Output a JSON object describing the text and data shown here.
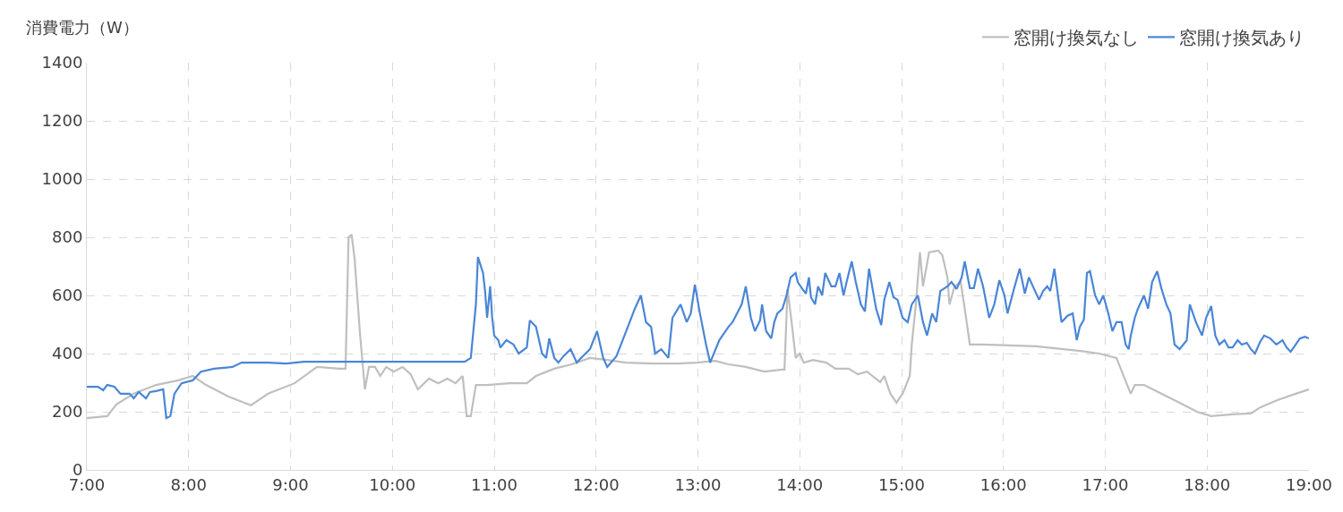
{
  "chart_data": {
    "type": "line",
    "ylabel": "消費電力（W）",
    "xlim": [
      7,
      19
    ],
    "xticks": [
      {
        "value": 7,
        "label": "7:00"
      },
      {
        "value": 8,
        "label": "8:00"
      },
      {
        "value": 9,
        "label": "9:00"
      },
      {
        "value": 10,
        "label": "10:00"
      },
      {
        "value": 11,
        "label": "11:00"
      },
      {
        "value": 12,
        "label": "12:00"
      },
      {
        "value": 13,
        "label": "13:00"
      },
      {
        "value": 14,
        "label": "14:00"
      },
      {
        "value": 15,
        "label": "15:00"
      },
      {
        "value": 16,
        "label": "16:00"
      },
      {
        "value": 17,
        "label": "17:00"
      },
      {
        "value": 18,
        "label": "18:00"
      },
      {
        "value": 19,
        "label": "19:00"
      }
    ],
    "ylim": [
      0,
      1400
    ],
    "yticks": [
      0,
      200,
      400,
      600,
      800,
      1000,
      1200,
      1400
    ],
    "grid": true,
    "legend": "top right",
    "marker": "none",
    "line_style": "solid",
    "series": [
      {
        "name": "窓開け換気なし",
        "color": "#bfbfbf",
        "x": [
          7.0,
          7.2,
          7.29,
          7.46,
          7.68,
          7.9,
          8.04,
          8.17,
          8.39,
          8.61,
          8.78,
          9.04,
          9.26,
          9.48,
          9.54,
          9.57,
          9.6,
          9.63,
          9.68,
          9.73,
          9.77,
          9.83,
          9.88,
          9.94,
          10.01,
          10.1,
          10.18,
          10.25,
          10.36,
          10.45,
          10.54,
          10.62,
          10.69,
          10.73,
          10.77,
          10.82,
          10.93,
          11.15,
          11.32,
          11.41,
          11.59,
          11.76,
          11.94,
          12.11,
          12.29,
          12.55,
          12.82,
          12.99,
          13.17,
          13.3,
          13.47,
          13.65,
          13.83,
          13.85,
          13.88,
          13.92,
          13.96,
          14.0,
          14.04,
          14.13,
          14.26,
          14.35,
          14.48,
          14.57,
          14.66,
          14.79,
          14.83,
          14.89,
          14.95,
          15.01,
          15.08,
          15.1,
          15.14,
          15.18,
          15.21,
          15.27,
          15.36,
          15.4,
          15.45,
          15.47,
          15.52,
          15.58,
          15.62,
          15.67,
          15.8,
          16.06,
          16.32,
          16.59,
          16.76,
          16.94,
          17.11,
          17.18,
          17.25,
          17.29,
          17.38,
          17.55,
          17.73,
          17.9,
          18.04,
          18.25,
          18.43,
          18.52,
          18.69,
          18.87,
          19.0
        ],
        "values": [
          178,
          185,
          225,
          262,
          292,
          308,
          323,
          292,
          252,
          222,
          262,
          298,
          354,
          348,
          348,
          800,
          809,
          723,
          477,
          277,
          354,
          354,
          323,
          354,
          338,
          354,
          329,
          277,
          314,
          298,
          314,
          298,
          323,
          185,
          185,
          292,
          292,
          298,
          298,
          323,
          348,
          363,
          385,
          378,
          369,
          366,
          366,
          369,
          375,
          363,
          354,
          338,
          345,
          345,
          622,
          508,
          385,
          400,
          369,
          378,
          369,
          348,
          348,
          329,
          338,
          302,
          323,
          262,
          231,
          262,
          323,
          431,
          569,
          748,
          631,
          748,
          754,
          738,
          662,
          569,
          631,
          646,
          554,
          431,
          431,
          428,
          425,
          415,
          409,
          400,
          385,
          323,
          262,
          292,
          292,
          262,
          231,
          200,
          185,
          191,
          194,
          215,
          240,
          262,
          277
        ]
      },
      {
        "name": "窓開け換気あり",
        "color": "#4a86d6",
        "x": [
          7.0,
          7.11,
          7.16,
          7.2,
          7.27,
          7.33,
          7.42,
          7.46,
          7.51,
          7.58,
          7.62,
          7.68,
          7.75,
          7.78,
          7.82,
          7.86,
          7.93,
          8.04,
          8.12,
          8.25,
          8.43,
          8.52,
          8.78,
          8.96,
          9.13,
          9.48,
          9.83,
          10.18,
          10.45,
          10.71,
          10.77,
          10.82,
          10.84,
          10.89,
          10.91,
          10.93,
          10.96,
          10.98,
          11.0,
          11.04,
          11.06,
          11.12,
          11.19,
          11.24,
          11.32,
          11.35,
          11.41,
          11.47,
          11.51,
          11.54,
          11.59,
          11.63,
          11.68,
          11.75,
          11.81,
          11.87,
          11.94,
          12.01,
          12.07,
          12.11,
          12.2,
          12.33,
          12.38,
          12.44,
          12.49,
          12.54,
          12.58,
          12.64,
          12.71,
          12.75,
          12.83,
          12.89,
          12.93,
          12.97,
          13.02,
          13.08,
          13.12,
          13.21,
          13.3,
          13.34,
          13.43,
          13.47,
          13.52,
          13.56,
          13.61,
          13.63,
          13.67,
          13.72,
          13.75,
          13.78,
          13.83,
          13.87,
          13.91,
          13.96,
          13.98,
          14.02,
          14.06,
          14.09,
          14.11,
          14.15,
          14.18,
          14.22,
          14.25,
          14.31,
          14.35,
          14.39,
          14.43,
          14.46,
          14.51,
          14.55,
          14.6,
          14.64,
          14.68,
          14.75,
          14.8,
          14.83,
          14.88,
          14.92,
          14.96,
          15.01,
          15.06,
          15.1,
          15.16,
          15.21,
          15.25,
          15.3,
          15.34,
          15.38,
          15.45,
          15.49,
          15.54,
          15.59,
          15.62,
          15.67,
          15.71,
          15.75,
          15.8,
          15.86,
          15.91,
          15.96,
          16.01,
          16.04,
          16.11,
          16.16,
          16.21,
          16.25,
          16.31,
          16.35,
          16.39,
          16.43,
          16.46,
          16.5,
          16.53,
          16.57,
          16.63,
          16.68,
          16.72,
          16.75,
          16.79,
          16.82,
          16.85,
          16.9,
          16.94,
          16.98,
          17.03,
          17.07,
          17.11,
          17.16,
          17.2,
          17.23,
          17.25,
          17.29,
          17.32,
          17.38,
          17.42,
          17.46,
          17.51,
          17.55,
          17.6,
          17.64,
          17.68,
          17.73,
          17.8,
          17.83,
          17.89,
          17.95,
          17.99,
          18.04,
          18.08,
          18.12,
          18.17,
          18.21,
          18.25,
          18.3,
          18.34,
          18.39,
          18.43,
          18.47,
          18.52,
          18.56,
          18.62,
          18.68,
          18.74,
          18.78,
          18.82,
          18.87,
          18.91,
          18.96,
          19.0
        ],
        "values": [
          286,
          286,
          274,
          292,
          286,
          262,
          262,
          246,
          268,
          246,
          268,
          271,
          277,
          178,
          185,
          262,
          298,
          308,
          338,
          348,
          354,
          369,
          369,
          366,
          372,
          372,
          372,
          372,
          372,
          372,
          385,
          569,
          732,
          677,
          615,
          523,
          631,
          523,
          462,
          446,
          421,
          446,
          431,
          400,
          421,
          514,
          492,
          400,
          385,
          452,
          385,
          369,
          391,
          415,
          369,
          391,
          415,
          477,
          385,
          354,
          391,
          508,
          554,
          600,
          508,
          492,
          400,
          415,
          385,
          523,
          569,
          508,
          538,
          637,
          538,
          431,
          369,
          446,
          492,
          508,
          569,
          631,
          523,
          477,
          514,
          569,
          477,
          452,
          508,
          538,
          554,
          600,
          662,
          677,
          646,
          625,
          606,
          662,
          594,
          569,
          631,
          600,
          677,
          631,
          631,
          677,
          600,
          646,
          717,
          646,
          569,
          545,
          692,
          554,
          498,
          585,
          646,
          594,
          585,
          523,
          508,
          569,
          600,
          508,
          462,
          538,
          508,
          615,
          631,
          646,
          622,
          662,
          717,
          625,
          625,
          692,
          631,
          523,
          569,
          652,
          600,
          538,
          631,
          692,
          606,
          662,
          615,
          585,
          615,
          631,
          615,
          692,
          615,
          508,
          530,
          538,
          446,
          492,
          517,
          677,
          683,
          600,
          569,
          600,
          538,
          477,
          508,
          508,
          431,
          415,
          462,
          523,
          554,
          600,
          554,
          646,
          683,
          625,
          569,
          538,
          431,
          415,
          446,
          569,
          508,
          462,
          523,
          563,
          462,
          431,
          446,
          421,
          421,
          446,
          431,
          437,
          415,
          400,
          440,
          462,
          452,
          431,
          446,
          421,
          406,
          431,
          452,
          458,
          452
        ]
      }
    ]
  }
}
